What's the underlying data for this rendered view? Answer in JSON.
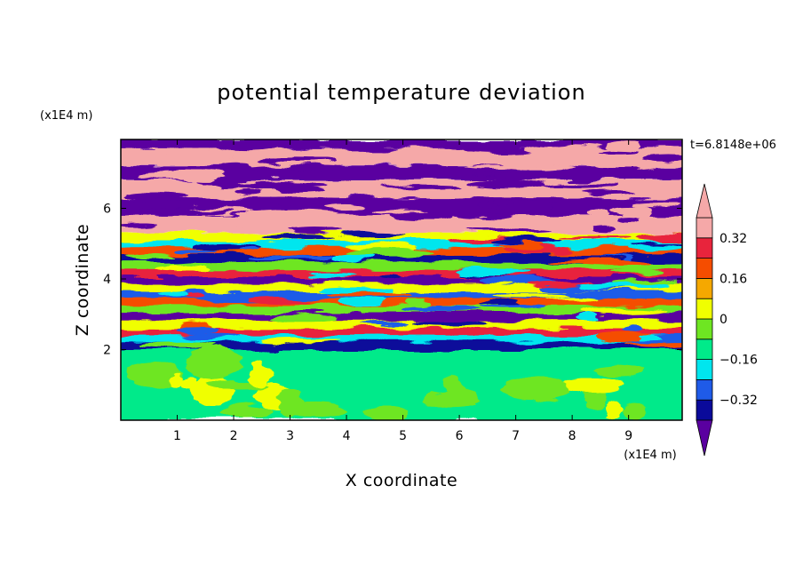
{
  "chart_data": {
    "type": "heatmap",
    "title": "potential temperature deviation",
    "xlabel": "X coordinate",
    "ylabel": "Z coordinate",
    "x_unit": "(x1E4 m)",
    "y_unit": "(x1E4 m)",
    "time_label": "t=6.8148e+06",
    "xlim": [
      0,
      9.95
    ],
    "ylim": [
      0,
      7.95
    ],
    "x_ticks": [
      1,
      2,
      3,
      4,
      5,
      6,
      7,
      8,
      9
    ],
    "y_ticks": [
      2,
      4,
      6
    ],
    "colorbar": {
      "levels": [
        -0.4,
        -0.32,
        -0.24,
        -0.16,
        -0.08,
        0,
        0.08,
        0.16,
        0.24,
        0.32,
        0.4
      ],
      "labels": [
        {
          "value": 0.32,
          "text": "0.32"
        },
        {
          "value": 0.16,
          "text": "0.16"
        },
        {
          "value": 0,
          "text": "0"
        },
        {
          "value": -0.16,
          "text": "−0.16"
        },
        {
          "value": -0.32,
          "text": "−0.32"
        }
      ],
      "colors": [
        "#5a00a0",
        "#0a0a9a",
        "#1f5be8",
        "#00e6ee",
        "#00ea8a",
        "#6ee622",
        "#f0ff00",
        "#f5a800",
        "#f54d00",
        "#e8243c",
        "#f5a8a8"
      ],
      "extend": "both"
    },
    "layers": [
      {
        "z_range": [
          7.7,
          7.95
        ],
        "band": "#5a00a0"
      },
      {
        "z_range": [
          7.2,
          7.7
        ],
        "band": "#f5a8a8"
      },
      {
        "z_range": [
          6.8,
          7.2
        ],
        "band": "#5a00a0"
      },
      {
        "z_range": [
          6.3,
          6.8
        ],
        "band": "#f5a8a8"
      },
      {
        "z_range": [
          5.8,
          6.3
        ],
        "band": "#5a00a0"
      },
      {
        "z_range": [
          5.3,
          5.8
        ],
        "band": "#f5a8a8"
      },
      {
        "z_range": [
          2.0,
          5.3
        ],
        "band": "mixed"
      },
      {
        "z_range": [
          0.0,
          2.0
        ],
        "band": "#00ea8a"
      }
    ]
  }
}
